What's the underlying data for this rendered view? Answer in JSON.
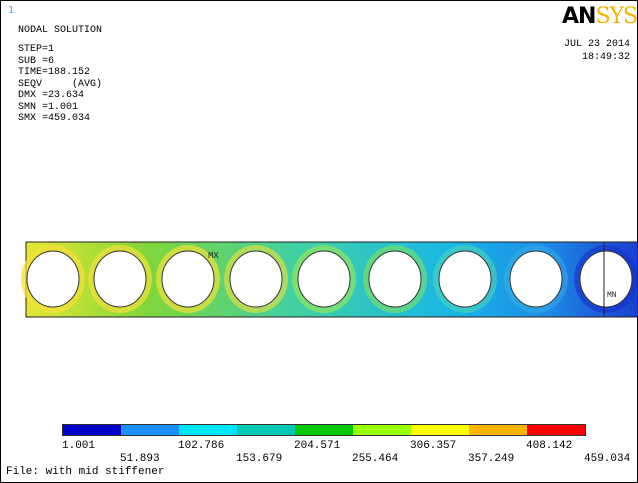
{
  "window_number": "1",
  "plot_title": "NODAL SOLUTION",
  "info": {
    "step": "STEP=1",
    "sub": "SUB =6",
    "time": "TIME=188.152",
    "seqv": "SEQV     (AVG)",
    "dmx": "DMX =23.634",
    "smn": "SMN =1.001",
    "smx": "SMX =459.034"
  },
  "logo": {
    "part1": "AN",
    "part2": "SYS"
  },
  "date": "JUL 23 2014",
  "time": "18:49:32",
  "markers": {
    "max": "MX",
    "min": "MN"
  },
  "legend": {
    "colors": [
      "#0000c8",
      "#1e90ff",
      "#00e5ff",
      "#00c8b4",
      "#00c800",
      "#96ff00",
      "#ffff00",
      "#ffb400",
      "#ff0000"
    ],
    "labels_top": [
      "1.001",
      "102.786",
      "204.571",
      "306.357",
      "408.142"
    ],
    "labels_bottom": [
      "51.893",
      "153.679",
      "255.464",
      "357.249",
      "459.034"
    ]
  },
  "file_label": "File: with mid stiffener"
}
